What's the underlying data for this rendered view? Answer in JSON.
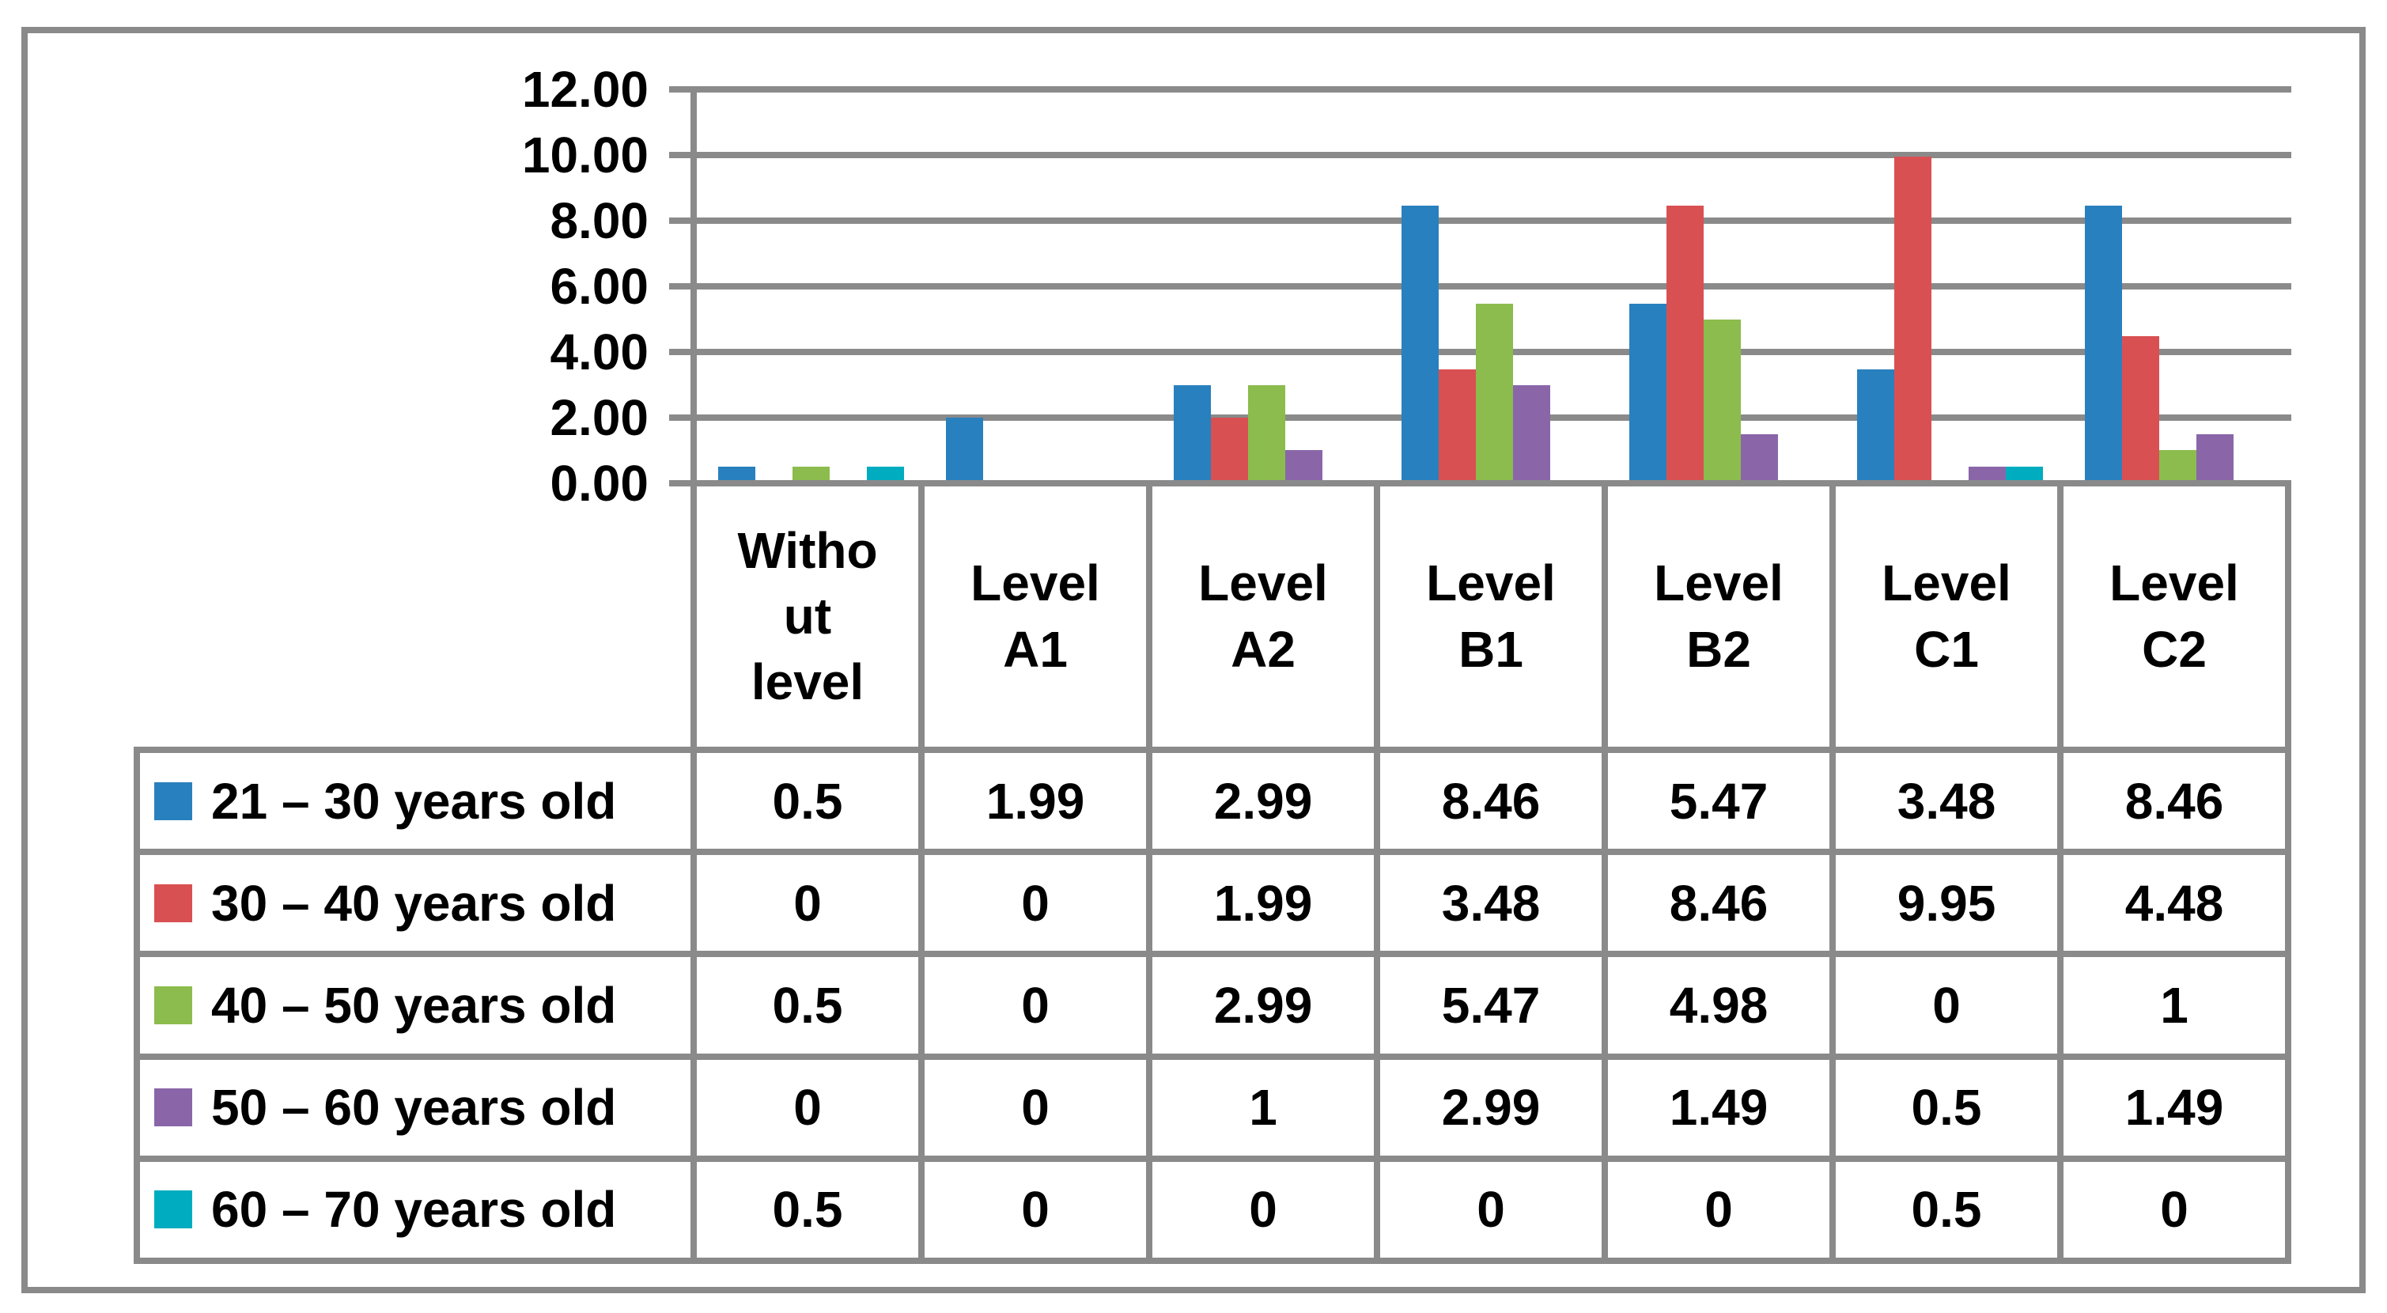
{
  "chart_data": {
    "type": "bar",
    "title": "",
    "xlabel": "",
    "ylabel": "",
    "categories": [
      "Without level",
      "Level A1",
      "Level A2",
      "Level B1",
      "Level B2",
      "Level C1",
      "Level C2"
    ],
    "category_display": [
      "Witho\nut\nlevel",
      "Level\nA1",
      "Level\nA2",
      "Level\nB1",
      "Level\nB2",
      "Level\nC1",
      "Level\nC2"
    ],
    "series": [
      {
        "name": "21 – 30 years old",
        "color": "#2980be",
        "values": [
          0.5,
          1.99,
          2.99,
          8.46,
          5.47,
          3.48,
          8.46
        ]
      },
      {
        "name": "30 – 40 years old",
        "color": "#d95052",
        "values": [
          0,
          0,
          1.99,
          3.48,
          8.46,
          9.95,
          4.48
        ]
      },
      {
        "name": "40 – 50 years old",
        "color": "#8bbc4d",
        "values": [
          0.5,
          0,
          2.99,
          5.47,
          4.98,
          0,
          1
        ]
      },
      {
        "name": "50 – 60 years old",
        "color": "#8a66a9",
        "values": [
          0,
          0,
          1,
          2.99,
          1.49,
          0.5,
          1.49
        ]
      },
      {
        "name": "60 – 70 years old",
        "color": "#00acbf",
        "values": [
          0.5,
          0,
          0,
          0,
          0,
          0.5,
          0
        ]
      }
    ],
    "y_axis": {
      "min": 0,
      "max": 12,
      "tick_step": 2,
      "tick_labels": [
        "12.00",
        "10.00",
        "8.00",
        "6.00",
        "4.00",
        "2.00",
        "0.00"
      ]
    },
    "grid": true,
    "gridline_color": "#8a8a8a",
    "legend_position": "table-left-column",
    "bar_layout": "clustered"
  }
}
